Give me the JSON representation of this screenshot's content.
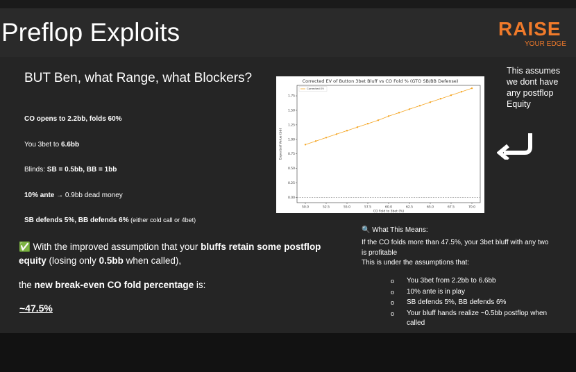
{
  "header": {
    "title": "Preflop Exploits",
    "brand": "RAISE",
    "tagline": "YOUR EDGE"
  },
  "slide": {
    "heading": "BUT Ben, what Range, what Blockers?",
    "facts": [
      [
        {
          "text": "CO opens to 2.2bb, folds 60%",
          "bold": true
        }
      ],
      [
        {
          "text": "You 3bet to ",
          "bold": false
        },
        {
          "text": "6.6bb",
          "bold": true
        }
      ],
      [
        {
          "text": "Blinds: ",
          "bold": false
        },
        {
          "text": "SB = 0.5bb, BB = 1bb",
          "bold": true
        }
      ],
      [
        {
          "text": "10% ante",
          "bold": true
        },
        {
          "text": " → 0.9bb dead money",
          "bold": false
        }
      ],
      [
        {
          "text": "SB defends 5%, BB defends 6%",
          "bold": true
        },
        {
          "text": " (either cold call or 4bet)",
          "bold": false
        }
      ]
    ],
    "assumption": [
      {
        "text": "✅ With the improved assumption that your ",
        "bold": false
      },
      {
        "text": "bluffs retain some postflop equity",
        "bold": true
      },
      {
        "text": " (losing only ",
        "bold": false
      },
      {
        "text": "0.5bb",
        "bold": true
      },
      {
        "text": " when called),",
        "bold": false
      }
    ],
    "breakeven": [
      {
        "text": "the ",
        "bold": false
      },
      {
        "text": "new break-even CO fold percentage",
        "bold": true
      },
      {
        "text": " is:",
        "bold": false
      }
    ],
    "result": "~47.5%",
    "side_note": "This assumes we dont have any postflop Equity",
    "meaning_title": "🔍 What This Means:",
    "meaning": "If the CO folds more than 47.5%, your 3bet bluff with any two is profitable",
    "assumptions_intro": "This is under the assumptions that:",
    "assumptions": [
      "You 3bet from 2.2bb to 6.6bb",
      "10% ante is in play",
      "SB defends 5%, BB defends 6%",
      "Your bluff hands realize ~0.5bb postflop when called"
    ]
  },
  "chart_data": {
    "type": "line",
    "title": "Corrected EV of Button 3bet Bluff vs CO Fold % (GTO SB/BB Defense)",
    "x_label": "CO Fold to 3bet (%)",
    "y_label": "Expected Value (bb)",
    "x": [
      50,
      51.25,
      52.5,
      53.75,
      55,
      56.25,
      57.5,
      58.75,
      60,
      61.25,
      62.5,
      63.75,
      65,
      66.25,
      67.5,
      68.75,
      70
    ],
    "series": [
      {
        "name": "Corrected EV",
        "color": "#f5a623",
        "values": [
          0.91,
          0.97,
          1.03,
          1.09,
          1.15,
          1.21,
          1.27,
          1.33,
          1.4,
          1.46,
          1.52,
          1.58,
          1.64,
          1.7,
          1.76,
          1.82,
          1.88
        ]
      }
    ],
    "xlim": [
      49,
      71
    ],
    "ylim": [
      -0.09,
      1.93
    ],
    "xticks": [
      {
        "value": 50,
        "label": "50.0"
      },
      52.5,
      {
        "value": 55,
        "label": "55.0"
      },
      57.5,
      {
        "value": 60,
        "label": "60.0"
      },
      62.5,
      {
        "value": 65,
        "label": "65.0"
      },
      67.5,
      {
        "value": 70,
        "label": "70.0"
      }
    ],
    "yticks": [
      {
        "value": 0,
        "label": "0.00"
      },
      0.25,
      {
        "value": 0.5,
        "label": "0.50"
      },
      0.75,
      {
        "value": 1,
        "label": "1.00"
      },
      1.25,
      {
        "value": 1.5,
        "label": "1.50"
      },
      1.75
    ],
    "hline": 0,
    "legend": "upper-left"
  }
}
